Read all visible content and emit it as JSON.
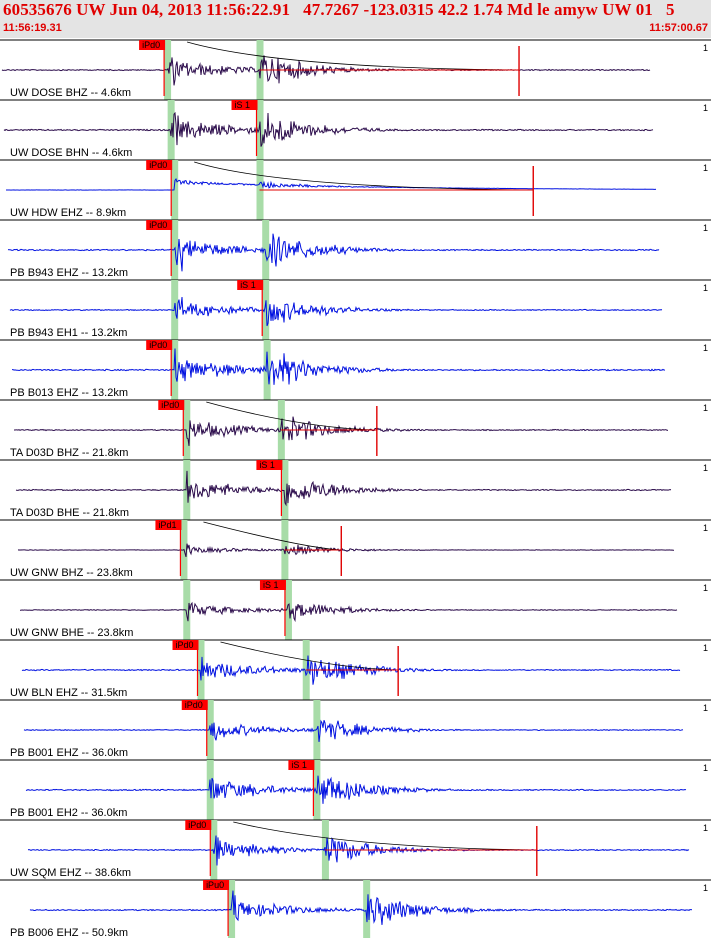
{
  "header": {
    "title": "60535676 UW Jun 04, 2013 11:56:22.91   47.7267 -123.0315 42.2 1.74 Md le amyw UW 01   5",
    "start_time": "11:56:19.31",
    "end_time": "11:57:00.67"
  },
  "colors": {
    "header_bg": "#e4e4e4",
    "header_text": "#e00000",
    "uw_trace": "#2a0a4a",
    "pb_trace": "#0010e0",
    "pick_box": "#ff0000",
    "s_window": "#a8dca8",
    "coda_fit": "#e00000"
  },
  "traces": [
    {
      "label": "UW DOSE BHZ -- 4.6km",
      "pick": "iPd0",
      "color": "uw",
      "p": 0.235,
      "s": 0.365,
      "pickAt": "p",
      "amp": 0.7,
      "coda": true,
      "codaEnd": 0.73,
      "scale": "1"
    },
    {
      "label": "UW DOSE BHN -- 4.6km",
      "pick": "iS 1",
      "color": "uw",
      "p": 0.24,
      "s": 0.365,
      "pickAt": "s",
      "amp": 0.8,
      "coda": false,
      "scale": "1"
    },
    {
      "label": "UW HDW EHZ -- 8.9km",
      "pick": "iPd0",
      "color": "pb",
      "p": 0.245,
      "s": 0.365,
      "pickAt": "p",
      "amp": 0.15,
      "coda": true,
      "codaEnd": 0.75,
      "drift": true,
      "scale": "1"
    },
    {
      "label": "PB B943 EHZ -- 13.2km",
      "pick": "iPd0",
      "color": "pb",
      "p": 0.245,
      "s": 0.373,
      "pickAt": "p",
      "amp": 0.8,
      "coda": false,
      "scale": "1"
    },
    {
      "label": "PB B943 EH1 -- 13.2km",
      "pick": "iS 1",
      "color": "pb",
      "p": 0.245,
      "s": 0.373,
      "pickAt": "s",
      "amp": 0.65,
      "coda": false,
      "scale": "1"
    },
    {
      "label": "PB B013 EHZ -- 13.2km",
      "pick": "iPd0",
      "color": "pb",
      "p": 0.245,
      "s": 0.375,
      "pickAt": "p",
      "amp": 0.85,
      "coda": false,
      "scale": "1"
    },
    {
      "label": "TA D03D BHZ -- 21.8km",
      "pick": "iPd0",
      "color": "uw",
      "p": 0.262,
      "s": 0.395,
      "pickAt": "p",
      "amp": 0.65,
      "coda": true,
      "codaEnd": 0.53,
      "scale": "1"
    },
    {
      "label": "TA D03D BHE -- 21.8km",
      "pick": "iS 1",
      "color": "uw",
      "p": 0.262,
      "s": 0.4,
      "pickAt": "s",
      "amp": 0.7,
      "coda": false,
      "scale": "1"
    },
    {
      "label": "UW GNW BHZ -- 23.8km",
      "pick": "iPd1",
      "color": "uw",
      "p": 0.258,
      "s": 0.4,
      "pickAt": "p",
      "amp": 0.25,
      "coda": true,
      "codaEnd": 0.48,
      "scale": "1"
    },
    {
      "label": "UW GNW BHE -- 23.8km",
      "pick": "iS 1",
      "color": "uw",
      "p": 0.262,
      "s": 0.405,
      "pickAt": "s",
      "amp": 0.45,
      "coda": false,
      "scale": "1"
    },
    {
      "label": "UW BLN EHZ -- 31.5km",
      "pick": "iPd0",
      "color": "pb",
      "p": 0.282,
      "s": 0.43,
      "pickAt": "p",
      "amp": 0.7,
      "coda": true,
      "codaEnd": 0.56,
      "scale": "1"
    },
    {
      "label": "PB B001 EHZ -- 36.0km",
      "pick": "iPd0",
      "color": "pb",
      "p": 0.295,
      "s": 0.445,
      "pickAt": "p",
      "amp": 0.55,
      "coda": false,
      "scale": "1"
    },
    {
      "label": "PB B001 EH2 -- 36.0km",
      "pick": "iS 1",
      "color": "pb",
      "p": 0.295,
      "s": 0.445,
      "pickAt": "s",
      "amp": 0.75,
      "coda": false,
      "scale": "1"
    },
    {
      "label": "UW SQM EHZ -- 38.6km",
      "pick": "iPd0",
      "color": "pb",
      "p": 0.3,
      "s": 0.457,
      "pickAt": "p",
      "amp": 0.65,
      "coda": true,
      "codaEnd": 0.755,
      "scale": "1"
    },
    {
      "label": "PB B006 EHZ -- 50.9km",
      "pick": "iPu0",
      "color": "pb",
      "p": 0.325,
      "s": 0.515,
      "pickAt": "p",
      "amp": 0.75,
      "coda": false,
      "scale": "1"
    }
  ]
}
